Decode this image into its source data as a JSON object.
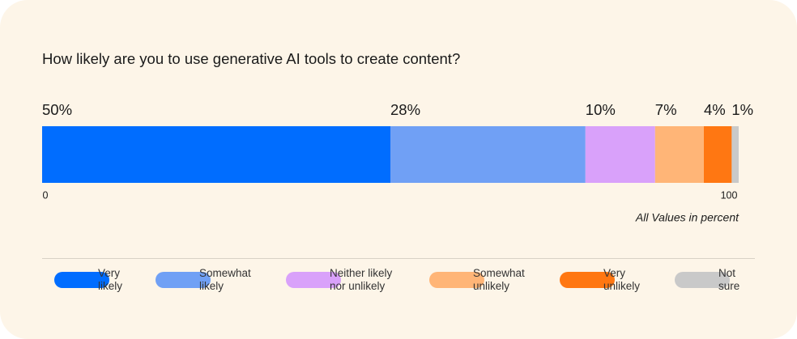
{
  "chart_data": {
    "type": "stacked-bar",
    "title": "How likely are you to use generative AI tools to create content?",
    "series": [
      {
        "name": "Very likely",
        "color": "#006dff",
        "values": [
          50
        ],
        "value_labels": [
          "50%"
        ]
      },
      {
        "name": "Somewhat likely",
        "color": "#70a0f5",
        "values": [
          28
        ],
        "value_labels": [
          "28%"
        ]
      },
      {
        "name": "Neither likely nor unlikely",
        "color": "#d9a1fa",
        "values": [
          10
        ],
        "value_labels": [
          "10%"
        ]
      },
      {
        "name": "Somewhat unlikely",
        "color": "#ffb577",
        "values": [
          7
        ],
        "value_labels": [
          "7%"
        ]
      },
      {
        "name": "Very unlikely",
        "color": "#ff7712",
        "values": [
          4
        ],
        "value_labels": [
          "4%"
        ]
      },
      {
        "name": "Not sure",
        "color": "#c9c9c9",
        "values": [
          1
        ],
        "value_labels": [
          "1%"
        ]
      }
    ],
    "xlim": [
      0,
      100
    ],
    "xticks": [
      0,
      100
    ],
    "note": "All Values in percent"
  }
}
